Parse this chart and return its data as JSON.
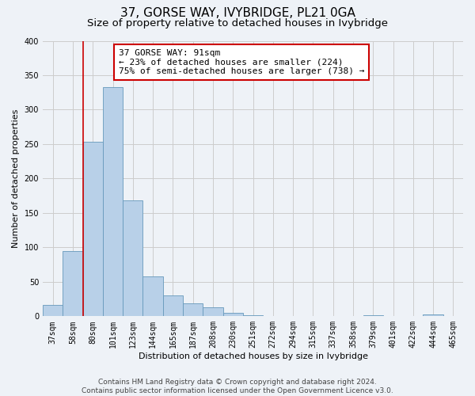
{
  "title": "37, GORSE WAY, IVYBRIDGE, PL21 0GA",
  "subtitle": "Size of property relative to detached houses in Ivybridge",
  "xlabel": "Distribution of detached houses by size in Ivybridge",
  "ylabel": "Number of detached properties",
  "bins": [
    "37sqm",
    "58sqm",
    "80sqm",
    "101sqm",
    "123sqm",
    "144sqm",
    "165sqm",
    "187sqm",
    "208sqm",
    "230sqm",
    "251sqm",
    "272sqm",
    "294sqm",
    "315sqm",
    "337sqm",
    "358sqm",
    "379sqm",
    "401sqm",
    "422sqm",
    "444sqm",
    "465sqm"
  ],
  "values": [
    17,
    95,
    253,
    333,
    168,
    58,
    30,
    19,
    13,
    5,
    1,
    0,
    0,
    0,
    0,
    0,
    1,
    0,
    0,
    3,
    0
  ],
  "bar_color": "#b8d0e8",
  "bar_edge_color": "#6699bb",
  "vline_color": "#cc0000",
  "annotation_text": "37 GORSE WAY: 91sqm\n← 23% of detached houses are smaller (224)\n75% of semi-detached houses are larger (738) →",
  "annotation_box_facecolor": "#ffffff",
  "annotation_box_edgecolor": "#cc0000",
  "ylim": [
    0,
    400
  ],
  "yticks": [
    0,
    50,
    100,
    150,
    200,
    250,
    300,
    350,
    400
  ],
  "grid_color": "#cccccc",
  "background_color": "#eef2f7",
  "fig_background_color": "#eef2f7",
  "footer_text": "Contains HM Land Registry data © Crown copyright and database right 2024.\nContains public sector information licensed under the Open Government Licence v3.0.",
  "title_fontsize": 11,
  "subtitle_fontsize": 9.5,
  "axis_label_fontsize": 8,
  "tick_fontsize": 7,
  "annotation_fontsize": 8,
  "footer_fontsize": 6.5,
  "vline_bin_index": 2
}
